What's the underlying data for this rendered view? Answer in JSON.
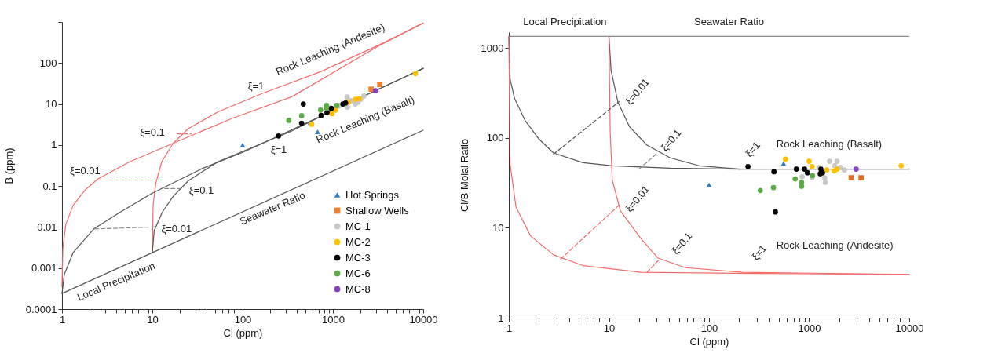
{
  "chart_data": [
    {
      "type": "scatter",
      "xlabel": "Cl (ppm)",
      "ylabel": "B (ppm)",
      "log": "xy",
      "legend": "bottom right",
      "xlim": [
        1,
        10000
      ],
      "ylim": [
        0.0001,
        1000
      ],
      "xticks": [
        1,
        {
          "value": 2,
          "label": null
        },
        {
          "value": 3,
          "label": null
        },
        {
          "value": 4,
          "label": null
        },
        {
          "value": 5,
          "label": null
        },
        {
          "value": 6,
          "label": null
        },
        {
          "value": 7,
          "label": null
        },
        {
          "value": 8,
          "label": null
        },
        {
          "value": 9,
          "label": null
        },
        10,
        {
          "value": 20,
          "label": null
        },
        {
          "value": 30,
          "label": null
        },
        {
          "value": 40,
          "label": null
        },
        {
          "value": 50,
          "label": null
        },
        {
          "value": 60,
          "label": null
        },
        {
          "value": 70,
          "label": null
        },
        {
          "value": 80,
          "label": null
        },
        {
          "value": 90,
          "label": null
        },
        100,
        {
          "value": 200,
          "label": null
        },
        {
          "value": 300,
          "label": null
        },
        {
          "value": 400,
          "label": null
        },
        {
          "value": 500,
          "label": null
        },
        {
          "value": 600,
          "label": null
        },
        {
          "value": 700,
          "label": null
        },
        {
          "value": 800,
          "label": null
        },
        {
          "value": 900,
          "label": null
        },
        1000,
        {
          "value": 2000,
          "label": null
        },
        {
          "value": 3000,
          "label": null
        },
        {
          "value": 4000,
          "label": null
        },
        {
          "value": 5000,
          "label": null
        },
        {
          "value": 6000,
          "label": null
        },
        {
          "value": 7000,
          "label": null
        },
        {
          "value": 8000,
          "label": null
        },
        {
          "value": 9000,
          "label": null
        },
        10000
      ],
      "yticks": [
        0.0001,
        0.001,
        0.01,
        0.1,
        1,
        10,
        100,
        {
          "value": 1000,
          "label": null
        }
      ],
      "series": [
        {
          "type": "line",
          "color": "#f26b6b",
          "x": [
            1,
            1.02,
            1.1,
            1.33,
            1.8,
            2.5,
            5.6,
            17,
            77,
            350,
            3300,
            10000
          ],
          "values": [
            0.00035,
            0.0029,
            0.0117,
            0.034,
            0.08,
            0.15,
            0.39,
            1.1,
            4.5,
            15,
            270,
            940
          ]
        },
        {
          "type": "line",
          "color": "#f26b6b",
          "x": [
            10,
            10.2,
            10.9,
            12.7,
            17,
            25,
            53,
            164,
            740,
            3300,
            10000
          ],
          "values": [
            0.0024,
            0.034,
            0.114,
            0.39,
            1.1,
            2.5,
            6.4,
            18,
            62,
            280,
            940
          ]
        },
        {
          "type": "line",
          "color": "#555555",
          "x": [
            1,
            1.06,
            1.33,
            2.25,
            4.4,
            10,
            36,
            100,
            250,
            10000
          ],
          "values": [
            0.00024,
            0.0007,
            0.0024,
            0.009,
            0.023,
            0.067,
            0.27,
            0.66,
            1.66,
            74
          ]
        },
        {
          "type": "line",
          "color": "#555555",
          "x": [
            10,
            10.5,
            12.9,
            17,
            25,
            53,
            164,
            350,
            1000,
            10000
          ],
          "values": [
            0.0024,
            0.0083,
            0.023,
            0.056,
            0.134,
            0.39,
            1.1,
            2.2,
            7,
            74
          ]
        },
        {
          "type": "line",
          "color": "#555555",
          "x": [
            1,
            10000
          ],
          "values": [
            0.00024,
            2.3
          ]
        },
        {
          "type": "line",
          "color": "#f26b6b",
          "line_style": "dashed",
          "x": [
            2.5,
            12.5
          ],
          "values": [
            0.14,
            0.14
          ]
        },
        {
          "type": "line",
          "color": "#f26b6b",
          "line_style": "dashed",
          "x": [
            19,
            27
          ],
          "values": [
            1.87,
            1.87
          ]
        },
        {
          "type": "line",
          "color": "#888888",
          "line_style": "dashed",
          "x": [
            2.3,
            11.3
          ],
          "values": [
            0.009,
            0.0101
          ]
        },
        {
          "type": "line",
          "color": "#888888",
          "line_style": "dashed",
          "x": [
            13.7,
            22
          ],
          "values": [
            0.087,
            0.087
          ]
        },
        {
          "name": "Hot Springs",
          "marker": "triangle",
          "color": "#2f7fc8",
          "x": [
            100,
            676,
            560
          ],
          "values": [
            1.0,
            2.1,
            3.5
          ]
        },
        {
          "name": "Shallow Wells",
          "marker": "square",
          "color": "#f07f2c",
          "x": [
            2650,
            3300
          ],
          "values": [
            23,
            30
          ]
        },
        {
          "name": "MC-1",
          "marker": "circle",
          "color": "#c8c8c8",
          "x": [
            1440,
            1590,
            1770,
            2040,
            2200,
            1170,
            1450,
            1900
          ],
          "values": [
            14.8,
            12,
            10,
            13,
            15.6,
            9.2,
            8.4,
            11
          ]
        },
        {
          "name": "MC-2",
          "marker": "circle",
          "color": "#ffc000",
          "x": [
            8200,
            580,
            980,
            1070,
            1480,
            1770,
            1950
          ],
          "values": [
            55,
            3.2,
            5.8,
            7.1,
            11,
            13,
            13.5
          ]
        },
        {
          "name": "MC-3",
          "marker": "circle",
          "color": "#000000",
          "x": [
            470,
            250,
            450,
            740,
            860,
            960,
            1290,
            1380
          ],
          "values": [
            10,
            1.66,
            3.4,
            5.3,
            6.2,
            7.8,
            10,
            10.6
          ]
        },
        {
          "name": "MC-6",
          "marker": "circle",
          "color": "#5aaa46",
          "x": [
            325,
            450,
            730,
            850,
            850,
            1100
          ],
          "values": [
            4.0,
            5.2,
            7.1,
            9.2,
            8.0,
            9.2
          ]
        },
        {
          "name": "MC-8",
          "marker": "circle",
          "color": "#8b3fc0",
          "x": [
            2960
          ],
          "values": [
            21
          ]
        }
      ],
      "annotations": [
        "Rock Leaching (Andesite)",
        "ξ=1",
        "ξ=0.1",
        "ξ=0.01",
        "ξ=1",
        "Rock Leaching (Basalt)",
        "ξ=0.1",
        "ξ=0.01",
        "Seawater Ratio",
        "Local Precipitation"
      ]
    },
    {
      "type": "scatter",
      "xlabel": "Cl (ppm)",
      "ylabel": "Cl/B Molal Ratio",
      "log": "xy",
      "xlim": [
        1,
        10000
      ],
      "ylim": [
        1,
        1500
      ],
      "xticks": [
        1,
        {
          "value": 2,
          "label": null
        },
        {
          "value": 3,
          "label": null
        },
        {
          "value": 4,
          "label": null
        },
        {
          "value": 5,
          "label": null
        },
        {
          "value": 6,
          "label": null
        },
        {
          "value": 7,
          "label": null
        },
        {
          "value": 8,
          "label": null
        },
        {
          "value": 9,
          "label": null
        },
        10,
        {
          "value": 20,
          "label": null
        },
        {
          "value": 30,
          "label": null
        },
        {
          "value": 40,
          "label": null
        },
        {
          "value": 50,
          "label": null
        },
        {
          "value": 60,
          "label": null
        },
        {
          "value": 70,
          "label": null
        },
        {
          "value": 80,
          "label": null
        },
        {
          "value": 90,
          "label": null
        },
        100,
        {
          "value": 200,
          "label": null
        },
        {
          "value": 300,
          "label": null
        },
        {
          "value": 400,
          "label": null
        },
        {
          "value": 500,
          "label": null
        },
        {
          "value": 600,
          "label": null
        },
        {
          "value": 700,
          "label": null
        },
        {
          "value": 800,
          "label": null
        },
        {
          "value": 900,
          "label": null
        },
        1000,
        {
          "value": 2000,
          "label": null
        },
        {
          "value": 3000,
          "label": null
        },
        {
          "value": 4000,
          "label": null
        },
        {
          "value": 5000,
          "label": null
        },
        {
          "value": 6000,
          "label": null
        },
        {
          "value": 7000,
          "label": null
        },
        {
          "value": 8000,
          "label": null
        },
        {
          "value": 9000,
          "label": null
        },
        10000
      ],
      "yticks": [
        1,
        10,
        100,
        1000
      ],
      "ref_lines": [
        {
          "axis": "y",
          "value": 1345,
          "label": "Seawater Ratio",
          "color": "#888888"
        }
      ],
      "series": [
        {
          "type": "line",
          "color": "#555555",
          "x": [
            1,
            1.03,
            1.14,
            1.45,
            2,
            2.8,
            5.5,
            10.8,
            41,
            200,
            10000
          ],
          "values": [
            1345,
            450,
            275,
            157,
            97,
            68,
            53,
            49,
            46,
            45,
            45
          ]
        },
        {
          "type": "line",
          "color": "#555555",
          "x": [
            10,
            10.5,
            12.3,
            16,
            24,
            41,
            80,
            205
          ],
          "values": [
            1345,
            565,
            250,
            134,
            83,
            60,
            49,
            45
          ]
        },
        {
          "type": "line",
          "color": "#f26b6b",
          "x": [
            1,
            1.03,
            1.18,
            1.65,
            2.8,
            5.5,
            21,
            305,
            10000
          ],
          "values": [
            1345,
            51,
            17,
            8.1,
            5.0,
            3.8,
            3.2,
            3.1,
            3.03
          ]
        },
        {
          "type": "line",
          "color": "#f26b6b",
          "x": [
            10,
            10.3,
            10.8,
            13,
            21,
            31,
            58,
            218,
            10000
          ],
          "values": [
            1345,
            114,
            34,
            15.5,
            7.5,
            4.6,
            3.6,
            3.2,
            3.03
          ]
        },
        {
          "type": "line",
          "color": "#555555",
          "line_style": "dashed",
          "x": [
            2.8,
            12.7
          ],
          "values": [
            66,
            254
          ]
        },
        {
          "type": "line",
          "color": "#888888",
          "line_style": "dashed",
          "x": [
            20,
            30.5
          ],
          "values": [
            45,
            68
          ]
        },
        {
          "type": "line",
          "color": "#f26b6b",
          "line_style": "dashed",
          "x": [
            3.3,
            12.7
          ],
          "values": [
            4.5,
            18
          ]
        },
        {
          "type": "line",
          "color": "#f26b6b",
          "line_style": "dashed",
          "x": [
            24,
            31
          ],
          "values": [
            3.2,
            4.3
          ]
        },
        {
          "marker": "triangle",
          "color": "#2f7fc8",
          "x": [
            100,
            555
          ],
          "values": [
            30,
            52
          ]
        },
        {
          "marker": "square",
          "color": "#e07020",
          "x": [
            2630,
            3300
          ],
          "values": [
            36,
            36
          ]
        },
        {
          "marker": "circle",
          "color": "#c8c8c8",
          "x": [
            850,
            1070,
            1450,
            1430,
            1600,
            1900,
            2050,
            1800,
            2250,
            1250
          ],
          "values": [
            37,
            36,
            32,
            36,
            55,
            55,
            47,
            49,
            44,
            47
          ]
        },
        {
          "marker": "circle",
          "color": "#ffc000",
          "x": [
            8300,
            580,
            1000,
            1070,
            1500,
            1780,
            1900
          ],
          "values": [
            49,
            58,
            55,
            48,
            44,
            43,
            45
          ]
        },
        {
          "marker": "circle",
          "color": "#000000",
          "x": [
            245,
            445,
            460,
            745,
            900,
            960,
            1310,
            1290,
            1360
          ],
          "values": [
            48,
            42,
            15,
            45,
            45,
            41,
            45,
            40,
            41
          ]
        },
        {
          "marker": "circle",
          "color": "#5aaa46",
          "x": [
            325,
            440,
            725,
            840,
            840,
            1080
          ],
          "values": [
            26,
            28,
            35,
            32,
            29,
            38
          ]
        },
        {
          "marker": "circle",
          "color": "#8b3fc0",
          "x": [
            2950
          ],
          "values": [
            45
          ]
        }
      ],
      "annotations": [
        "Local Precipitation",
        "ξ=0.01",
        "ξ=0.1",
        "ξ=1",
        "Rock Leaching (Basalt)",
        "ξ=0.01",
        "ξ=0.1",
        "ξ=1",
        "Rock Leaching (Andesite)"
      ]
    }
  ]
}
